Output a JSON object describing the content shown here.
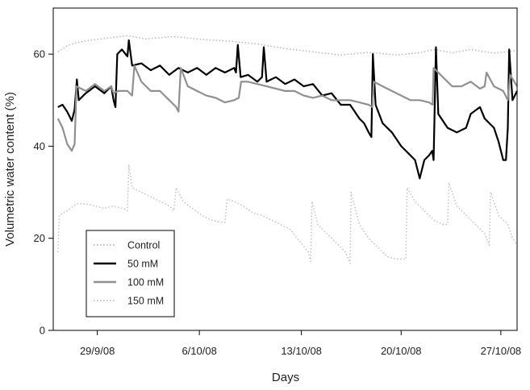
{
  "chart_data": {
    "type": "line",
    "title": "",
    "xlabel": "Days",
    "ylabel": "Volumetric water content (%)",
    "ylim": [
      0,
      70
    ],
    "xlim": [
      0,
      100
    ],
    "grid": false,
    "legend_position": "bottom-left",
    "y_ticks": [
      0,
      20,
      40,
      60
    ],
    "x_ticks": [
      {
        "value": 9.5,
        "label": "29/9/08"
      },
      {
        "value": 31.5,
        "label": "6/10/08"
      },
      {
        "value": 53.5,
        "label": "13/10/08"
      },
      {
        "value": 75.0,
        "label": "20/10/08"
      },
      {
        "value": 96.5,
        "label": "27/10/08"
      }
    ],
    "series": [
      {
        "name": "Control",
        "color": "#b3b3b3",
        "dash": "dotted",
        "width": 1.4,
        "points": [
          [
            1,
            60.5
          ],
          [
            3,
            61.8
          ],
          [
            5,
            62.5
          ],
          [
            8,
            63.0
          ],
          [
            12,
            63.5
          ],
          [
            16,
            64.0
          ],
          [
            20,
            63.3
          ],
          [
            26,
            63.8
          ],
          [
            32,
            63.2
          ],
          [
            38,
            62.8
          ],
          [
            44,
            62.2
          ],
          [
            50,
            61.2
          ],
          [
            55,
            60.6
          ],
          [
            62,
            59.8
          ],
          [
            68,
            60.4
          ],
          [
            74,
            59.8
          ],
          [
            79,
            60.3
          ],
          [
            82,
            61.0
          ],
          [
            86,
            60.3
          ],
          [
            90,
            61.0
          ],
          [
            95,
            60.2
          ],
          [
            100,
            60.8
          ]
        ]
      },
      {
        "name": "50 mM",
        "color": "#000000",
        "dash": "solid",
        "width": 2.2,
        "points": [
          [
            1,
            48.5
          ],
          [
            2,
            49
          ],
          [
            3,
            47.5
          ],
          [
            4,
            45.5
          ],
          [
            4.6,
            48
          ],
          [
            5.1,
            54.5
          ],
          [
            5.5,
            50
          ],
          [
            7,
            51.5
          ],
          [
            9,
            53
          ],
          [
            11,
            51.5
          ],
          [
            12.5,
            53
          ],
          [
            13,
            50
          ],
          [
            13.4,
            48.5
          ],
          [
            13.8,
            60
          ],
          [
            14.8,
            61
          ],
          [
            16,
            59.5
          ],
          [
            16.3,
            63
          ],
          [
            17,
            57.5
          ],
          [
            19,
            58
          ],
          [
            21,
            56.5
          ],
          [
            23,
            57.5
          ],
          [
            25,
            55.5
          ],
          [
            27,
            57
          ],
          [
            29,
            56
          ],
          [
            31,
            57
          ],
          [
            33,
            55.5
          ],
          [
            35,
            57
          ],
          [
            37,
            56
          ],
          [
            39,
            57
          ],
          [
            39.4,
            56
          ],
          [
            39.8,
            62
          ],
          [
            40.4,
            55
          ],
          [
            42,
            55.5
          ],
          [
            44,
            54
          ],
          [
            45,
            55
          ],
          [
            45.4,
            61.5
          ],
          [
            46,
            54
          ],
          [
            48,
            55
          ],
          [
            50,
            53.5
          ],
          [
            52,
            54.5
          ],
          [
            54,
            53
          ],
          [
            56,
            53.5
          ],
          [
            58,
            51
          ],
          [
            60,
            51.5
          ],
          [
            62,
            49
          ],
          [
            64,
            49
          ],
          [
            66,
            46
          ],
          [
            67,
            45
          ],
          [
            68,
            43
          ],
          [
            68.6,
            42
          ],
          [
            68.9,
            60
          ],
          [
            69.5,
            49
          ],
          [
            71,
            45
          ],
          [
            73,
            43
          ],
          [
            75,
            40
          ],
          [
            77,
            38
          ],
          [
            78,
            37
          ],
          [
            79,
            33
          ],
          [
            80,
            37
          ],
          [
            81,
            38
          ],
          [
            81.7,
            39
          ],
          [
            82,
            37
          ],
          [
            82.5,
            61.5
          ],
          [
            83,
            47
          ],
          [
            85,
            44
          ],
          [
            87,
            43
          ],
          [
            89,
            44
          ],
          [
            90,
            47
          ],
          [
            92,
            48.5
          ],
          [
            93,
            46
          ],
          [
            94,
            45
          ],
          [
            95,
            44
          ],
          [
            96,
            41
          ],
          [
            97,
            37
          ],
          [
            97.6,
            37
          ],
          [
            98,
            44
          ],
          [
            98.3,
            61
          ],
          [
            99,
            50
          ],
          [
            100,
            52
          ]
        ]
      },
      {
        "name": "100 mM",
        "color": "#909090",
        "dash": "solid",
        "width": 2.2,
        "points": [
          [
            1,
            46
          ],
          [
            2,
            44
          ],
          [
            3,
            40.5
          ],
          [
            4,
            39
          ],
          [
            4.6,
            40.5
          ],
          [
            5,
            53
          ],
          [
            7,
            52
          ],
          [
            9,
            53.5
          ],
          [
            11,
            52
          ],
          [
            12.5,
            53
          ],
          [
            13,
            51.5
          ],
          [
            14,
            52
          ],
          [
            16,
            52
          ],
          [
            17,
            51
          ],
          [
            17.5,
            57.5
          ],
          [
            19,
            54
          ],
          [
            21,
            52
          ],
          [
            23,
            52
          ],
          [
            25,
            50
          ],
          [
            26.5,
            48.5
          ],
          [
            27,
            47.5
          ],
          [
            27.5,
            57
          ],
          [
            29,
            53
          ],
          [
            31,
            52
          ],
          [
            33,
            51
          ],
          [
            35,
            50.5
          ],
          [
            37,
            49.5
          ],
          [
            39,
            50
          ],
          [
            40,
            50.5
          ],
          [
            40.5,
            54
          ],
          [
            42,
            54
          ],
          [
            44,
            53.5
          ],
          [
            46,
            53
          ],
          [
            48,
            52.5
          ],
          [
            50,
            52
          ],
          [
            52,
            52
          ],
          [
            54,
            51
          ],
          [
            56,
            50.5
          ],
          [
            58,
            51
          ],
          [
            60,
            50
          ],
          [
            62,
            50
          ],
          [
            64,
            50
          ],
          [
            66,
            49.5
          ],
          [
            68,
            49
          ],
          [
            68.8,
            48.5
          ],
          [
            69.1,
            54
          ],
          [
            71,
            53
          ],
          [
            73,
            52
          ],
          [
            75,
            51
          ],
          [
            77,
            50
          ],
          [
            79,
            50
          ],
          [
            81,
            49.5
          ],
          [
            81.8,
            49
          ],
          [
            82,
            57
          ],
          [
            84,
            55
          ],
          [
            86,
            53
          ],
          [
            88,
            53
          ],
          [
            90,
            54
          ],
          [
            92,
            52.5
          ],
          [
            93,
            53
          ],
          [
            93.4,
            56
          ],
          [
            95,
            53
          ],
          [
            97,
            52
          ],
          [
            98,
            50
          ],
          [
            98.5,
            55.5
          ],
          [
            100,
            53
          ]
        ]
      },
      {
        "name": "150 mM",
        "color": "#bdbdbd",
        "dash": "dotted",
        "width": 1.4,
        "points": [
          [
            1,
            17
          ],
          [
            1.3,
            25
          ],
          [
            3,
            26
          ],
          [
            5,
            27.5
          ],
          [
            7,
            27.5
          ],
          [
            9,
            27
          ],
          [
            11,
            26.5
          ],
          [
            13,
            27
          ],
          [
            15,
            26.5
          ],
          [
            16,
            26
          ],
          [
            16.3,
            36
          ],
          [
            17,
            31
          ],
          [
            19,
            30
          ],
          [
            21,
            29
          ],
          [
            23,
            28
          ],
          [
            25,
            27
          ],
          [
            26,
            26
          ],
          [
            26.5,
            31
          ],
          [
            28,
            28
          ],
          [
            30,
            26.5
          ],
          [
            32,
            25
          ],
          [
            34,
            24
          ],
          [
            36,
            23.5
          ],
          [
            37,
            23.5
          ],
          [
            37.5,
            28.5
          ],
          [
            39,
            28
          ],
          [
            41,
            27
          ],
          [
            43,
            25.5
          ],
          [
            45,
            25
          ],
          [
            47,
            24
          ],
          [
            49,
            23
          ],
          [
            51,
            22
          ],
          [
            53,
            19.5
          ],
          [
            55,
            17
          ],
          [
            55.5,
            15
          ],
          [
            55.8,
            28
          ],
          [
            57,
            23
          ],
          [
            59,
            21
          ],
          [
            61,
            19
          ],
          [
            63,
            17
          ],
          [
            64,
            14.5
          ],
          [
            64.2,
            30
          ],
          [
            66,
            23
          ],
          [
            68,
            20
          ],
          [
            70,
            18
          ],
          [
            72,
            16
          ],
          [
            74,
            15.5
          ],
          [
            76,
            15.5
          ],
          [
            76.3,
            31
          ],
          [
            78,
            28
          ],
          [
            80,
            26
          ],
          [
            82,
            24
          ],
          [
            84,
            23
          ],
          [
            85,
            23
          ],
          [
            85.3,
            32
          ],
          [
            87,
            27
          ],
          [
            89,
            25
          ],
          [
            91,
            23
          ],
          [
            93,
            21
          ],
          [
            94,
            18.5
          ],
          [
            94.3,
            30
          ],
          [
            96,
            25
          ],
          [
            98,
            23
          ],
          [
            99,
            20
          ],
          [
            100,
            18.5
          ]
        ]
      }
    ]
  }
}
